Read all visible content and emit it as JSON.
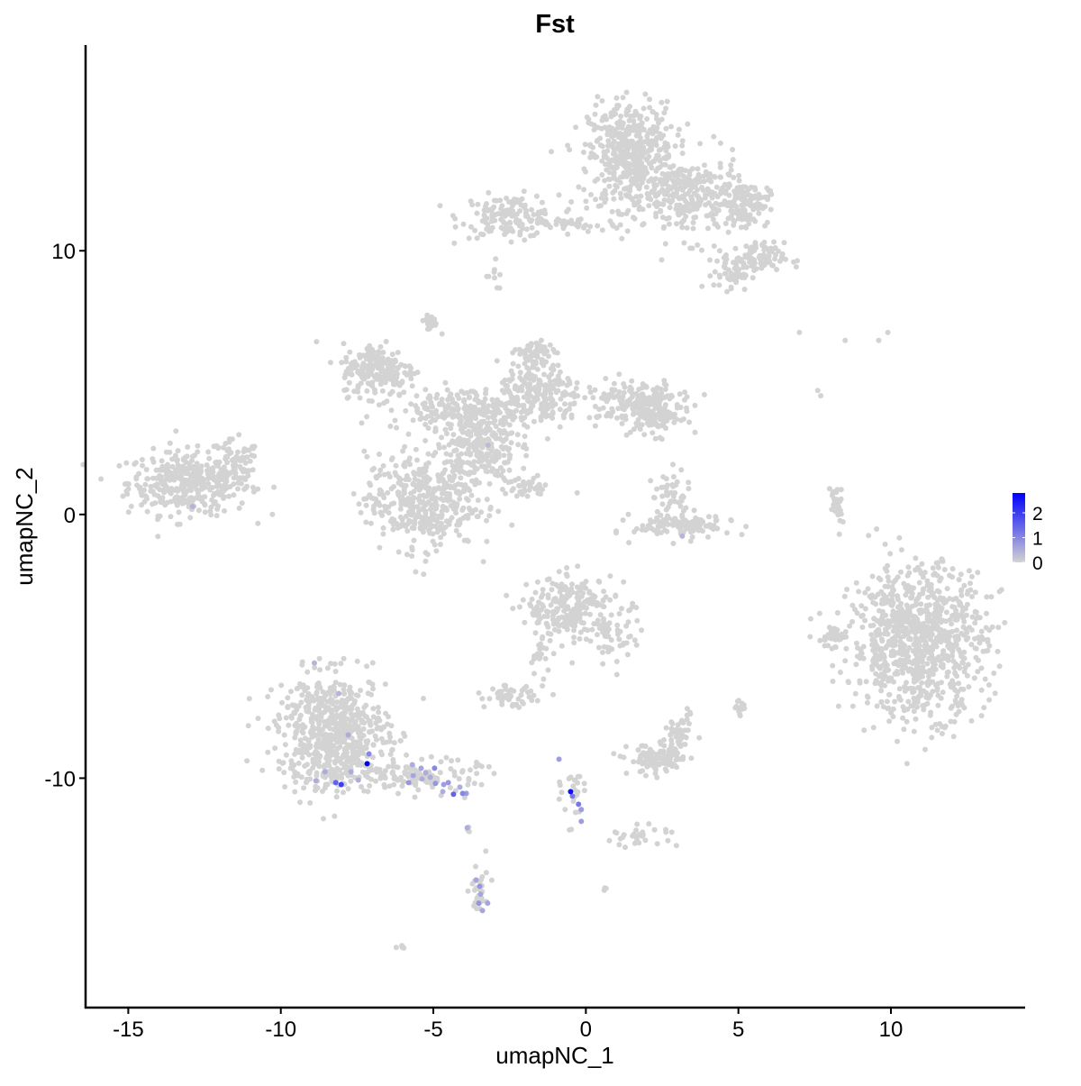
{
  "chart_data": {
    "type": "scatter",
    "title": "Fst",
    "xlabel": "umapNC_1",
    "ylabel": "umapNC_2",
    "xlim": [
      -16.4,
      14.4
    ],
    "ylim": [
      -18.7,
      17.8
    ],
    "xticks": [
      -15,
      -10,
      -5,
      0,
      5,
      10
    ],
    "yticks": [
      -10,
      0,
      10
    ],
    "grid": false,
    "legend": {
      "placement": "right",
      "type": "colorbar",
      "ticks": [
        0,
        1,
        2
      ],
      "range": [
        0,
        2.8
      ],
      "low_color": "#d3d3d3",
      "high_color": "#0000ff"
    },
    "background_clusters_note_value": 0,
    "clusters": [
      {
        "cx": -13.0,
        "cy": 1.2,
        "sx": 1.0,
        "sy": 0.6,
        "n": 380
      },
      {
        "cx": -11.5,
        "cy": 1.8,
        "sx": 0.4,
        "sy": 0.5,
        "n": 60
      },
      {
        "cx": -2.5,
        "cy": 11.3,
        "sx": 0.8,
        "sy": 0.4,
        "n": 150
      },
      {
        "cx": -0.5,
        "cy": 11.0,
        "sx": 0.8,
        "sy": 0.15,
        "n": 40
      },
      {
        "cx": 1.5,
        "cy": 13.6,
        "sx": 0.7,
        "sy": 1.0,
        "n": 500
      },
      {
        "cx": 3.5,
        "cy": 12.0,
        "sx": 0.8,
        "sy": 0.8,
        "n": 250
      },
      {
        "cx": 5.2,
        "cy": 11.8,
        "sx": 0.4,
        "sy": 0.4,
        "n": 120
      },
      {
        "cx": 5.5,
        "cy": 9.7,
        "sx": 0.5,
        "sy": 0.3,
        "n": 100
      },
      {
        "cx": 4.8,
        "cy": 9.1,
        "sx": 0.3,
        "sy": 0.3,
        "n": 40
      },
      {
        "cx": -3.0,
        "cy": 8.8,
        "sx": 0.15,
        "sy": 0.3,
        "n": 8
      },
      {
        "cx": -6.8,
        "cy": 5.5,
        "sx": 0.6,
        "sy": 0.5,
        "n": 200
      },
      {
        "cx": -4.0,
        "cy": 4.0,
        "sx": 1.2,
        "sy": 0.4,
        "n": 200
      },
      {
        "cx": -5.4,
        "cy": 0.5,
        "sx": 0.9,
        "sy": 0.9,
        "n": 400
      },
      {
        "cx": -3.5,
        "cy": 2.7,
        "sx": 0.6,
        "sy": 0.8,
        "n": 250
      },
      {
        "cx": -1.5,
        "cy": 4.5,
        "sx": 0.7,
        "sy": 0.6,
        "n": 200
      },
      {
        "cx": 1.5,
        "cy": 4.3,
        "sx": 0.8,
        "sy": 0.4,
        "n": 150
      },
      {
        "cx": 2.3,
        "cy": 3.8,
        "sx": 0.4,
        "sy": 0.4,
        "n": 120
      },
      {
        "cx": -1.7,
        "cy": 6.0,
        "sx": 0.3,
        "sy": 0.3,
        "n": 60
      },
      {
        "cx": -5.1,
        "cy": 7.3,
        "sx": 0.15,
        "sy": 0.15,
        "n": 25
      },
      {
        "cx": -2.0,
        "cy": 1.0,
        "sx": 0.4,
        "sy": 0.2,
        "n": 40
      },
      {
        "cx": 3.2,
        "cy": -0.4,
        "sx": 0.8,
        "sy": 0.25,
        "n": 120
      },
      {
        "cx": 2.8,
        "cy": 0.8,
        "sx": 0.3,
        "sy": 0.4,
        "n": 40
      },
      {
        "cx": 8.2,
        "cy": 0.3,
        "sx": 0.1,
        "sy": 0.5,
        "n": 30
      },
      {
        "cx": 10.9,
        "cy": -4.8,
        "sx": 1.1,
        "sy": 1.4,
        "n": 900
      },
      {
        "cx": 8.0,
        "cy": -4.6,
        "sx": 0.3,
        "sy": 0.3,
        "n": 30
      },
      {
        "cx": -0.5,
        "cy": -3.6,
        "sx": 0.7,
        "sy": 0.6,
        "n": 250
      },
      {
        "cx": 1.0,
        "cy": -4.6,
        "sx": 0.4,
        "sy": 0.6,
        "n": 50
      },
      {
        "cx": -2.5,
        "cy": -6.9,
        "sx": 0.4,
        "sy": 0.2,
        "n": 50
      },
      {
        "cx": -1.5,
        "cy": -5.5,
        "sx": 0.2,
        "sy": 0.5,
        "n": 20
      },
      {
        "cx": 2.4,
        "cy": -9.3,
        "sx": 0.5,
        "sy": 0.3,
        "n": 100
      },
      {
        "cx": 3.0,
        "cy": -8.5,
        "sx": 0.2,
        "sy": 0.4,
        "n": 40
      },
      {
        "cx": 5.0,
        "cy": -7.3,
        "sx": 0.1,
        "sy": 0.2,
        "n": 15
      },
      {
        "cx": 3.4,
        "cy": -7.6,
        "sx": 0.1,
        "sy": 0.1,
        "n": 5
      },
      {
        "cx": -8.3,
        "cy": -8.3,
        "sx": 0.9,
        "sy": 1.1,
        "n": 650
      },
      {
        "cx": -5.3,
        "cy": -9.9,
        "sx": 0.9,
        "sy": 0.3,
        "n": 120
      },
      {
        "cx": 1.8,
        "cy": -12.2,
        "sx": 0.6,
        "sy": 0.2,
        "n": 30
      },
      {
        "cx": -0.4,
        "cy": -10.5,
        "sx": 0.2,
        "sy": 0.6,
        "n": 25
      },
      {
        "cx": -3.5,
        "cy": -14.4,
        "sx": 0.15,
        "sy": 0.6,
        "n": 30
      },
      {
        "cx": -6.1,
        "cy": -16.4,
        "sx": 0.1,
        "sy": 0.05,
        "n": 5
      },
      {
        "cx": 0.6,
        "cy": -14.2,
        "sx": 0.05,
        "sy": 0.05,
        "n": 3
      },
      {
        "cx": -3.9,
        "cy": -11.9,
        "sx": 0.05,
        "sy": 0.1,
        "n": 3
      }
    ],
    "scattered_points": [
      [
        7.0,
        6.9
      ],
      [
        8.5,
        6.6
      ],
      [
        9.6,
        6.6
      ],
      [
        9.9,
        6.9
      ],
      [
        7.6,
        4.7
      ],
      [
        7.7,
        4.5
      ]
    ],
    "expressing_points": [
      {
        "x": -7.17,
        "y": -9.45,
        "value": 2.8
      },
      {
        "x": -7.79,
        "y": -8.36,
        "value": 0.5
      },
      {
        "x": -7.11,
        "y": -9.08,
        "value": 1.0
      },
      {
        "x": -8.55,
        "y": -9.76,
        "value": 0.5
      },
      {
        "x": -8.85,
        "y": -10.1,
        "value": 0.5
      },
      {
        "x": -8.2,
        "y": -10.17,
        "value": 1.5
      },
      {
        "x": -8.02,
        "y": -10.24,
        "value": 2.0
      },
      {
        "x": -7.7,
        "y": -9.76,
        "value": 0.5
      },
      {
        "x": -7.46,
        "y": -10.07,
        "value": 0.5
      },
      {
        "x": -5.69,
        "y": -9.49,
        "value": 0.5
      },
      {
        "x": -5.4,
        "y": -9.62,
        "value": 0.6
      },
      {
        "x": -4.96,
        "y": -9.62,
        "value": 1.0
      },
      {
        "x": -5.66,
        "y": -9.9,
        "value": 0.6
      },
      {
        "x": -5.25,
        "y": -9.8,
        "value": 0.5
      },
      {
        "x": -5.1,
        "y": -9.97,
        "value": 0.5
      },
      {
        "x": -5.81,
        "y": -10.17,
        "value": 0.8
      },
      {
        "x": -5.37,
        "y": -10.03,
        "value": 0.5
      },
      {
        "x": -4.93,
        "y": -10.2,
        "value": 0.8
      },
      {
        "x": -4.66,
        "y": -10.24,
        "value": 0.7
      },
      {
        "x": -4.51,
        "y": -10.17,
        "value": 0.8
      },
      {
        "x": -4.69,
        "y": -10.51,
        "value": 0.5
      },
      {
        "x": -4.34,
        "y": -10.61,
        "value": 1.5
      },
      {
        "x": -4.04,
        "y": -10.58,
        "value": 1.0
      },
      {
        "x": -4.13,
        "y": -10.34,
        "value": 0.5
      },
      {
        "x": -3.92,
        "y": -10.58,
        "value": 0.7
      },
      {
        "x": -0.88,
        "y": -9.28,
        "value": 0.7
      },
      {
        "x": -0.5,
        "y": -10.51,
        "value": 2.6
      },
      {
        "x": -0.44,
        "y": -10.68,
        "value": 1.2
      },
      {
        "x": -0.24,
        "y": -10.99,
        "value": 1.2
      },
      {
        "x": -0.15,
        "y": -11.19,
        "value": 0.7
      },
      {
        "x": -0.15,
        "y": -11.64,
        "value": 0.7
      },
      {
        "x": -3.89,
        "y": -11.88,
        "value": 0.5
      },
      {
        "x": -3.6,
        "y": -13.86,
        "value": 0.6
      },
      {
        "x": -3.48,
        "y": -14.1,
        "value": 0.8
      },
      {
        "x": -3.45,
        "y": -14.4,
        "value": 0.6
      },
      {
        "x": -3.51,
        "y": -14.74,
        "value": 0.8
      },
      {
        "x": -3.22,
        "y": -14.74,
        "value": 0.6
      },
      {
        "x": -3.39,
        "y": -15.02,
        "value": 0.6
      },
      {
        "x": -12.89,
        "y": 0.3,
        "value": 0.4
      },
      {
        "x": -3.21,
        "y": 2.63,
        "value": 0.3
      },
      {
        "x": 3.16,
        "y": -0.82,
        "value": 0.4
      },
      {
        "x": -8.9,
        "y": -5.63,
        "value": 0.4
      },
      {
        "x": -8.1,
        "y": -6.79,
        "value": 0.4
      }
    ]
  }
}
